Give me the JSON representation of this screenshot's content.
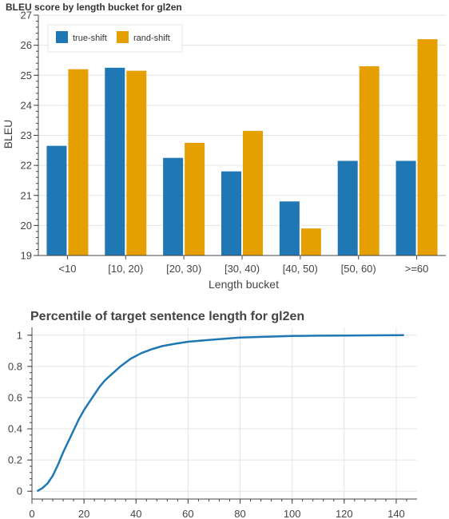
{
  "chart_data": [
    {
      "type": "bar",
      "title": "BLEU score by length bucket for gl2en",
      "xlabel": "Length bucket",
      "ylabel": "BLEU",
      "ylim": [
        19,
        27
      ],
      "yticks": [
        "19",
        "20",
        "21",
        "22",
        "23",
        "24",
        "25",
        "26",
        "27"
      ],
      "categories": [
        "<10",
        "[10, 20)",
        "[20, 30)",
        "[30, 40)",
        "[40, 50)",
        "[50, 60)",
        ">=60"
      ],
      "series": [
        {
          "name": "true-shift",
          "color": "#1f77b4",
          "values": [
            22.65,
            25.25,
            22.25,
            21.8,
            20.8,
            22.15,
            22.15
          ]
        },
        {
          "name": "rand-shift",
          "color": "#e69f00",
          "values": [
            25.2,
            25.15,
            22.75,
            23.15,
            19.9,
            25.3,
            26.2
          ]
        }
      ],
      "legend": "top-left",
      "grid": true
    },
    {
      "type": "line",
      "title": "Percentile of target sentence length for gl2en",
      "xlabel": "",
      "ylabel": "",
      "xlim": [
        0,
        148
      ],
      "ylim": [
        -0.05,
        1.05
      ],
      "xticks": [
        "0",
        "20",
        "40",
        "60",
        "80",
        "100",
        "120",
        "140"
      ],
      "yticks": [
        "0",
        "0.2",
        "0.4",
        "0.6",
        "0.8",
        "1"
      ],
      "series": [
        {
          "name": "",
          "color": "#1f77b4",
          "x": [
            2,
            4,
            6,
            8,
            10,
            12,
            14,
            16,
            18,
            20,
            22,
            24,
            26,
            28,
            30,
            34,
            38,
            42,
            46,
            50,
            55,
            60,
            70,
            80,
            90,
            100,
            110,
            120,
            130,
            143
          ],
          "y": [
            0.0,
            0.02,
            0.05,
            0.1,
            0.17,
            0.25,
            0.32,
            0.39,
            0.46,
            0.52,
            0.57,
            0.62,
            0.67,
            0.71,
            0.74,
            0.8,
            0.85,
            0.885,
            0.91,
            0.93,
            0.945,
            0.958,
            0.972,
            0.985,
            0.99,
            0.995,
            0.997,
            0.998,
            0.999,
            1.0
          ]
        }
      ],
      "grid": true
    }
  ]
}
